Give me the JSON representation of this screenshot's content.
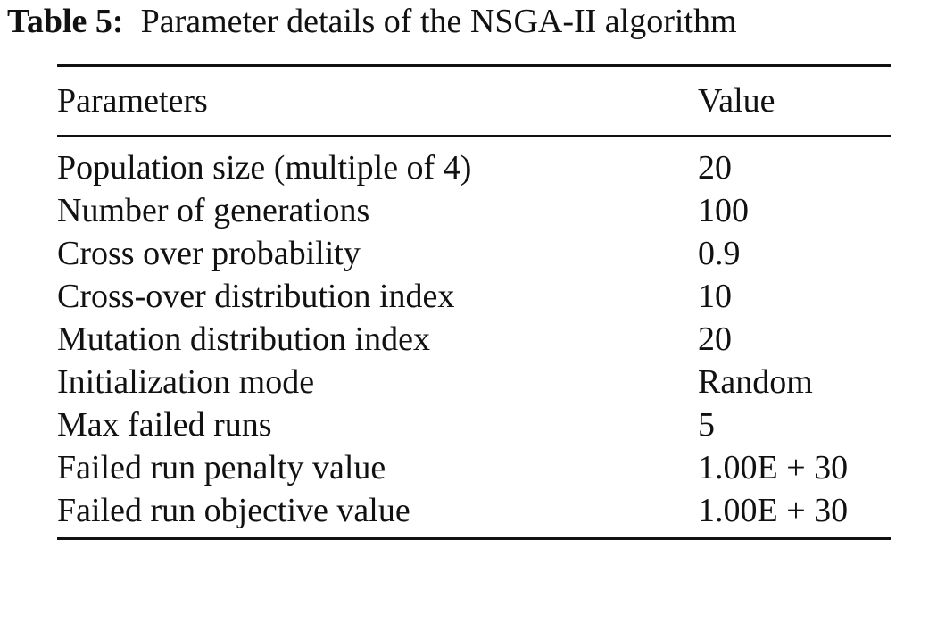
{
  "caption": {
    "label": "Table 5:",
    "text": "Parameter details of the NSGA-II algorithm"
  },
  "headers": [
    "Parameters",
    "Value"
  ],
  "rows": [
    [
      "Population size (multiple of 4)",
      "20"
    ],
    [
      "Number of generations",
      "100"
    ],
    [
      "Cross over probability",
      "0.9"
    ],
    [
      "Cross-over distribution index",
      "10"
    ],
    [
      "Mutation distribution index",
      "20"
    ],
    [
      "Initialization mode",
      "Random"
    ],
    [
      "Max failed runs",
      "5"
    ],
    [
      "Failed run penalty value",
      "1.00E + 30"
    ],
    [
      "Failed run objective value",
      "1.00E + 30"
    ]
  ]
}
